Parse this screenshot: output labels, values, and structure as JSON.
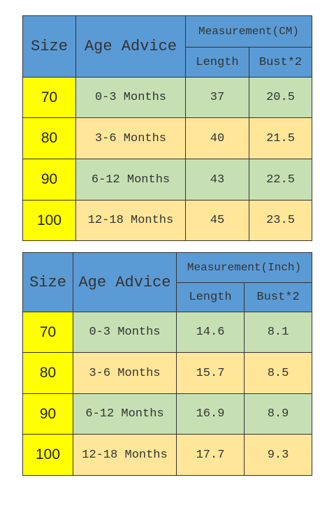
{
  "tables": [
    {
      "header": {
        "size": "Size",
        "age": "Age Advice",
        "measurement": "Measurement(CM)",
        "length": "Length",
        "bust": "Bust*2"
      },
      "rows": [
        [
          "70",
          "0-3 Months",
          37,
          20.5
        ],
        [
          "80",
          "3-6 Months",
          40,
          21.5
        ],
        [
          "90",
          "6-12 Months",
          43,
          22.5
        ],
        [
          "100",
          "12-18 Months",
          45,
          23.5
        ]
      ]
    },
    {
      "header": {
        "size": "Size",
        "age": "Age Advice",
        "measurement": "Measurement(Inch)",
        "length": "Length",
        "bust": "Bust*2"
      },
      "rows": [
        [
          "70",
          "0-3 Months",
          14.6,
          8.1
        ],
        [
          "80",
          "3-6 Months",
          15.7,
          8.5
        ],
        [
          "90",
          "6-12 Months",
          16.9,
          8.9
        ],
        [
          "100",
          "12-18 Months",
          17.7,
          9.3
        ]
      ]
    }
  ]
}
